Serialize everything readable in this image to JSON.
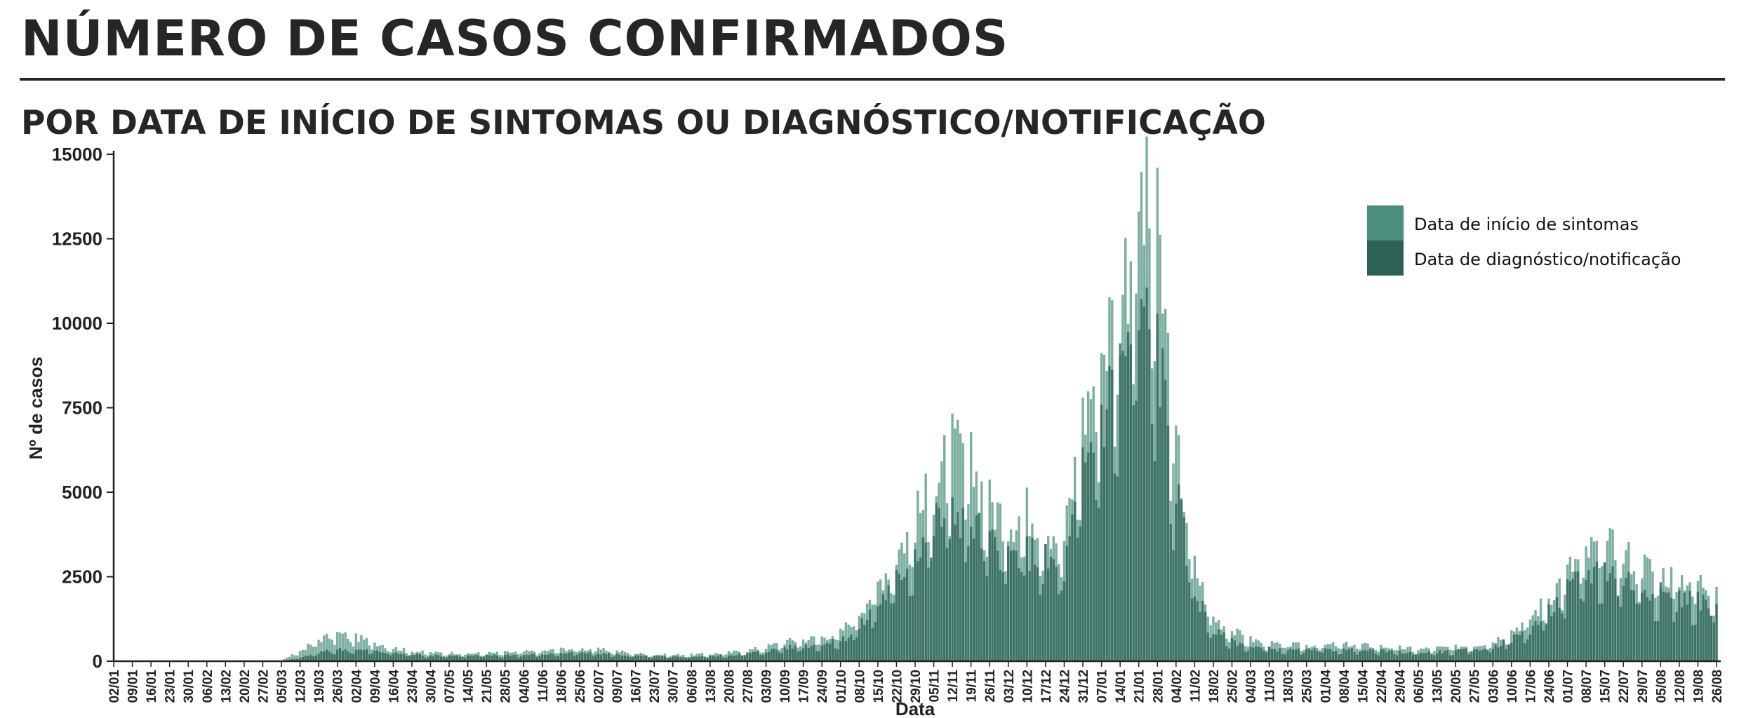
{
  "header": {
    "title": "NÚMERO DE CASOS CONFIRMADOS",
    "subtitle": "POR DATA DE INÍCIO DE SINTOMAS OU DIAGNÓSTICO/NOTIFICAÇÃO"
  },
  "chart_data": {
    "type": "bar",
    "xlabel": "Data",
    "ylabel": "Nº de casos",
    "ylim": [
      0,
      15000
    ],
    "y_ticks": [
      0,
      2500,
      5000,
      7500,
      10000,
      12500,
      15000
    ],
    "x_tick_labels": [
      "02/01",
      "09/01",
      "16/01",
      "23/01",
      "30/01",
      "06/02",
      "13/02",
      "20/02",
      "27/02",
      "05/03",
      "12/03",
      "19/03",
      "26/03",
      "02/04",
      "09/04",
      "16/04",
      "23/04",
      "30/04",
      "07/05",
      "14/05",
      "21/05",
      "28/05",
      "04/06",
      "11/06",
      "18/06",
      "25/06",
      "02/07",
      "09/07",
      "16/07",
      "23/07",
      "30/07",
      "06/08",
      "13/08",
      "20/08",
      "27/08",
      "03/09",
      "10/09",
      "17/09",
      "24/09",
      "01/10",
      "08/10",
      "15/10",
      "22/10",
      "29/10",
      "05/11",
      "12/11",
      "19/11",
      "26/11",
      "03/12",
      "10/12",
      "17/12",
      "24/12",
      "31/12",
      "07/01",
      "14/01",
      "21/01",
      "28/01",
      "04/02",
      "11/02",
      "18/02",
      "25/02",
      "04/03",
      "11/03",
      "18/03",
      "25/03",
      "01/04",
      "08/04",
      "15/04",
      "22/04",
      "29/04",
      "06/05",
      "13/05",
      "20/05",
      "27/05",
      "03/06",
      "10/06",
      "17/06",
      "24/06",
      "01/07",
      "08/07",
      "15/07",
      "22/07",
      "29/07",
      "05/08",
      "12/08",
      "19/08",
      "26/08"
    ],
    "x_weekly_anchor_values": {
      "dates": [
        "02/01",
        "09/01",
        "16/01",
        "23/01",
        "30/01",
        "06/02",
        "13/02",
        "20/02",
        "27/02",
        "05/03",
        "12/03",
        "19/03",
        "26/03",
        "02/04",
        "09/04",
        "16/04",
        "23/04",
        "30/04",
        "07/05",
        "14/05",
        "21/05",
        "28/05",
        "04/06",
        "11/06",
        "18/06",
        "25/06",
        "02/07",
        "09/07",
        "16/07",
        "23/07",
        "30/07",
        "06/08",
        "13/08",
        "20/08",
        "27/08",
        "03/09",
        "10/09",
        "17/09",
        "24/09",
        "01/10",
        "08/10",
        "15/10",
        "22/10",
        "29/10",
        "05/11",
        "12/11",
        "19/11",
        "26/11",
        "03/12",
        "10/12",
        "17/12",
        "24/12",
        "31/12",
        "07/01",
        "14/01",
        "21/01",
        "28/01",
        "04/02",
        "11/02",
        "18/02",
        "25/02",
        "04/03",
        "11/03",
        "18/03",
        "25/03",
        "01/04",
        "08/04",
        "15/04",
        "22/04",
        "29/04",
        "06/05",
        "13/05",
        "20/05",
        "27/05",
        "03/06",
        "10/06",
        "17/06",
        "24/06",
        "01/07",
        "08/07",
        "15/07",
        "22/07",
        "29/07",
        "05/08",
        "12/08",
        "19/08",
        "26/08"
      ]
    },
    "series": [
      {
        "name": "Data de início de sintomas",
        "color": "#4a8f7d",
        "weekly_values": [
          0,
          0,
          0,
          0,
          0,
          0,
          0,
          0,
          0,
          20,
          300,
          650,
          820,
          700,
          560,
          400,
          300,
          250,
          250,
          230,
          240,
          260,
          280,
          300,
          360,
          370,
          350,
          300,
          230,
          200,
          190,
          200,
          210,
          260,
          320,
          420,
          580,
          640,
          720,
          850,
          1500,
          2300,
          3200,
          4200,
          5200,
          6300,
          5800,
          4700,
          4200,
          4500,
          4100,
          3600,
          7200,
          9300,
          10800,
          13800,
          12500,
          6400,
          2800,
          1300,
          900,
          650,
          520,
          480,
          470,
          480,
          500,
          480,
          440,
          400,
          350,
          400,
          420,
          480,
          600,
          900,
          1300,
          1900,
          2700,
          3200,
          3500,
          3200,
          2900,
          2600,
          2500,
          2400,
          2200
        ]
      },
      {
        "name": "Data de diagnóstico/notificação",
        "color": "#2d6156",
        "weekly_values": [
          0,
          0,
          0,
          0,
          0,
          0,
          0,
          0,
          0,
          0,
          100,
          250,
          350,
          340,
          300,
          240,
          200,
          170,
          170,
          160,
          170,
          180,
          190,
          200,
          230,
          240,
          230,
          200,
          160,
          140,
          130,
          140,
          150,
          180,
          230,
          300,
          400,
          450,
          500,
          600,
          1000,
          1700,
          2400,
          3300,
          4100,
          4600,
          4200,
          3500,
          3100,
          3300,
          3000,
          2700,
          5600,
          7300,
          8800,
          10300,
          9500,
          5000,
          2100,
          900,
          600,
          430,
          360,
          330,
          320,
          330,
          340,
          330,
          300,
          270,
          250,
          280,
          300,
          340,
          430,
          650,
          950,
          1450,
          2100,
          2600,
          2800,
          2500,
          2200,
          2000,
          1900,
          1800,
          1700
        ]
      }
    ],
    "legend_position": "top-right",
    "grid": false
  }
}
